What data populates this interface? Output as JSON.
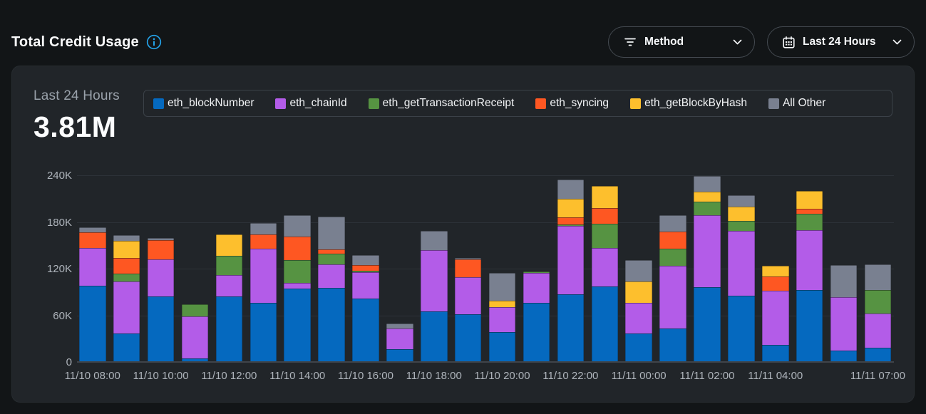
{
  "page": {
    "title": "Total Credit Usage"
  },
  "controls": {
    "method_dropdown": {
      "label": "Method"
    },
    "time_range_dropdown": {
      "label": "Last 24 Hours"
    }
  },
  "summary": {
    "period_label": "Last 24 Hours",
    "total_value": "3.81M"
  },
  "chart_data": {
    "type": "bar",
    "stacked": true,
    "title": "Total Credit Usage - Last 24 Hours",
    "ylim": [
      0,
      240000
    ],
    "grid": "horizontal",
    "legend_position": "top",
    "yticks": [
      {
        "value": 0,
        "label": "0"
      },
      {
        "value": 60000,
        "label": "60K"
      },
      {
        "value": 120000,
        "label": "120K"
      },
      {
        "value": 180000,
        "label": "180K"
      },
      {
        "value": 240000,
        "label": "240K"
      }
    ],
    "x": [
      "11/10 08:00",
      "11/10 09:00",
      "11/10 10:00",
      "11/10 11:00",
      "11/10 12:00",
      "11/10 13:00",
      "11/10 14:00",
      "11/10 15:00",
      "11/10 16:00",
      "11/10 17:00",
      "11/10 18:00",
      "11/10 19:00",
      "11/10 20:00",
      "11/10 21:00",
      "11/10 22:00",
      "11/10 23:00",
      "11/11 00:00",
      "11/11 01:00",
      "11/11 02:00",
      "11/11 03:00",
      "11/11 04:00",
      "11/11 05:00",
      "11/11 06:00",
      "11/11 07:00"
    ],
    "x_tick_indices": [
      0,
      2,
      4,
      6,
      8,
      10,
      12,
      14,
      16,
      18,
      20,
      23
    ],
    "series": [
      {
        "name": "eth_blockNumber",
        "color": "#0569bf",
        "values": [
          97000,
          36000,
          83500,
          4000,
          83000,
          75000,
          93500,
          94000,
          81000,
          16000,
          64500,
          60500,
          38000,
          75000,
          86000,
          96500,
          36000,
          42000,
          95000,
          84500,
          21000,
          92000,
          14000,
          17000
        ]
      },
      {
        "name": "eth_chainId",
        "color": "#b35ce8",
        "values": [
          49000,
          66500,
          47500,
          53500,
          27500,
          69500,
          7000,
          30500,
          33500,
          26500,
          78000,
          47500,
          31500,
          38500,
          88500,
          49500,
          39000,
          81000,
          92500,
          83000,
          69500,
          76500,
          68500,
          44000
        ]
      },
      {
        "name": "eth_getTransactionReceipt",
        "color": "#569342",
        "values": [
          0,
          10000,
          0,
          16000,
          25500,
          0,
          29500,
          13500,
          2000,
          0,
          0,
          0,
          0,
          2000,
          1500,
          30500,
          0,
          21500,
          17500,
          13000,
          0,
          21500,
          0,
          30500
        ]
      },
      {
        "name": "eth_syncing",
        "color": "#fe5722",
        "values": [
          20000,
          20500,
          24500,
          0,
          0,
          18500,
          30000,
          6000,
          7500,
          0,
          0,
          23000,
          0,
          0,
          9500,
          20500,
          0,
          22000,
          0,
          0,
          18500,
          6000,
          0,
          0
        ]
      },
      {
        "name": "eth_getBlockByHash",
        "color": "#fdbf2d",
        "values": [
          0,
          22000,
          0,
          0,
          27000,
          0,
          0,
          0,
          0,
          0,
          0,
          0,
          8000,
          0,
          23000,
          28000,
          28000,
          0,
          13000,
          18500,
          13500,
          23000,
          0,
          0
        ]
      },
      {
        "name": "All Other",
        "color": "#798090",
        "values": [
          6500,
          7500,
          3000,
          0,
          0,
          14500,
          27500,
          42000,
          12500,
          6000,
          25500,
          2000,
          36500,
          0,
          25000,
          0,
          27500,
          21500,
          20000,
          14500,
          0,
          0,
          41000,
          33000
        ]
      }
    ]
  },
  "colors": {
    "page_bg": "#121517",
    "card_bg": "#212529",
    "accent_blue": "#24a2e8",
    "gridline": "#2d3238"
  }
}
